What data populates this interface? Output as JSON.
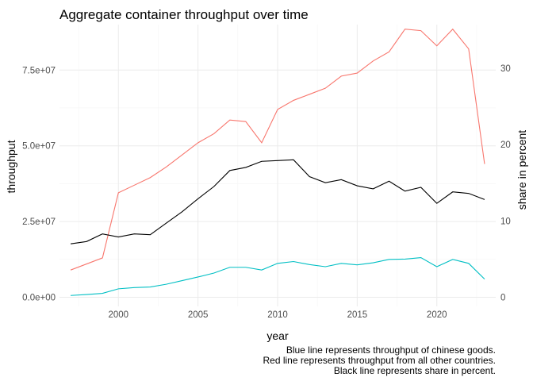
{
  "chart_data": {
    "type": "line",
    "title": "Aggregate container throughput over time",
    "xlabel": "year",
    "ylabel": "throughput",
    "y2label": "share in percent",
    "xlim": [
      1996.3,
      2023.7
    ],
    "ylim": [
      -3000000.0,
      90000000.0
    ],
    "y2lim": [
      -1.19,
      35.7
    ],
    "x_ticks": [
      2000,
      2005,
      2010,
      2015,
      2020
    ],
    "x_tick_labels": [
      "2000",
      "2005",
      "2010",
      "2015",
      "2020"
    ],
    "y_ticks": [
      0,
      25000000,
      50000000,
      75000000
    ],
    "y_tick_labels": [
      "0.0e+00",
      "2.5e+07",
      "5.0e+07",
      "7.5e+07"
    ],
    "y2_ticks": [
      0,
      10,
      20,
      30
    ],
    "y2_tick_labels": [
      "0",
      "10",
      "20",
      "30"
    ],
    "grid": true,
    "x": [
      1997,
      1998,
      1999,
      2000,
      2001,
      2002,
      2003,
      2004,
      2005,
      2006,
      2007,
      2008,
      2009,
      2010,
      2011,
      2012,
      2013,
      2014,
      2015,
      2016,
      2017,
      2018,
      2019,
      2020,
      2021,
      2022,
      2023
    ],
    "series": [
      {
        "color": "#F8766D",
        "axis": "left",
        "values": [
          9000000,
          11000000,
          13000000,
          34500000,
          37000000,
          39500000,
          43000000,
          47000000,
          51000000,
          54000000,
          58500000,
          58000000,
          51000000,
          62000000,
          65000000,
          67000000,
          69000000,
          73000000,
          74000000,
          78000000,
          81000000,
          88500000,
          88000000,
          83000000,
          88500000,
          82000000,
          44000000
        ]
      },
      {
        "color": "#00BFC4",
        "axis": "left",
        "values": [
          600000,
          900000,
          1300000,
          2800000,
          3200000,
          3400000,
          4300000,
          5500000,
          6700000,
          8000000,
          9900000,
          9900000,
          9000000,
          11200000,
          11800000,
          10800000,
          10100000,
          11200000,
          10700000,
          11400000,
          12500000,
          12600000,
          13100000,
          10100000,
          12500000,
          11200000,
          6000000
        ]
      },
      {
        "color": "#000000",
        "axis": "right",
        "values": [
          7.0,
          7.3,
          8.3,
          7.9,
          8.3,
          8.2,
          9.7,
          11.2,
          12.9,
          14.5,
          16.6,
          17.0,
          17.8,
          17.9,
          18.0,
          15.8,
          15.0,
          15.4,
          14.6,
          14.2,
          15.2,
          13.9,
          14.4,
          12.3,
          13.8,
          13.6,
          12.8
        ]
      }
    ],
    "captions": [
      "Blue line represents throughput of chinese goods.",
      "Red line represents throughput from all other countries.",
      "Black line represents share in percent."
    ]
  }
}
